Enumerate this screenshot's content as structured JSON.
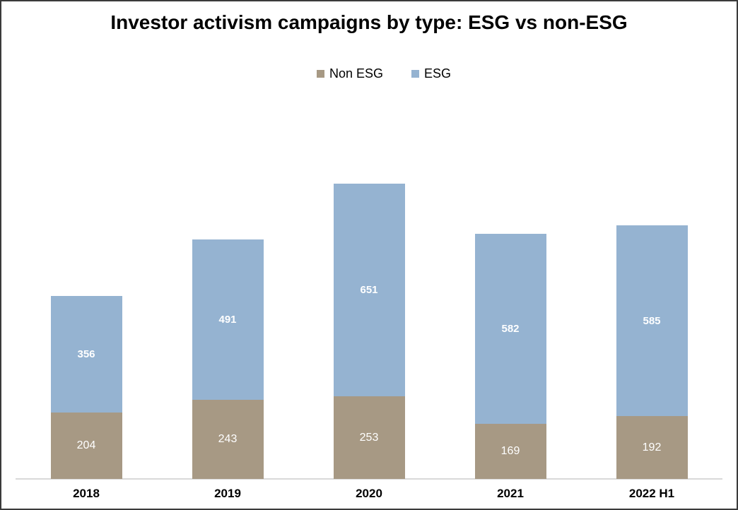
{
  "chart_data": {
    "type": "bar",
    "stacked": true,
    "title": "Investor activism campaigns by type: ESG vs non-ESG",
    "categories": [
      "2018",
      "2019",
      "2020",
      "2021",
      "2022 H1"
    ],
    "series": [
      {
        "name": "Non ESG",
        "color": "#A79984",
        "values": [
          204,
          243,
          253,
          169,
          192
        ]
      },
      {
        "name": "ESG",
        "color": "#95B3D1",
        "values": [
          356,
          491,
          651,
          582,
          585
        ]
      }
    ],
    "value_labels_shown": true,
    "value_label_color": "#FFFFFF",
    "legend_position": "top-center",
    "grid": false,
    "y_axis_shown": false,
    "x_axis_line_color": "#D9D9D9",
    "frame_border_color": "#3A3A3A",
    "background_color": "#FFFFFF"
  }
}
